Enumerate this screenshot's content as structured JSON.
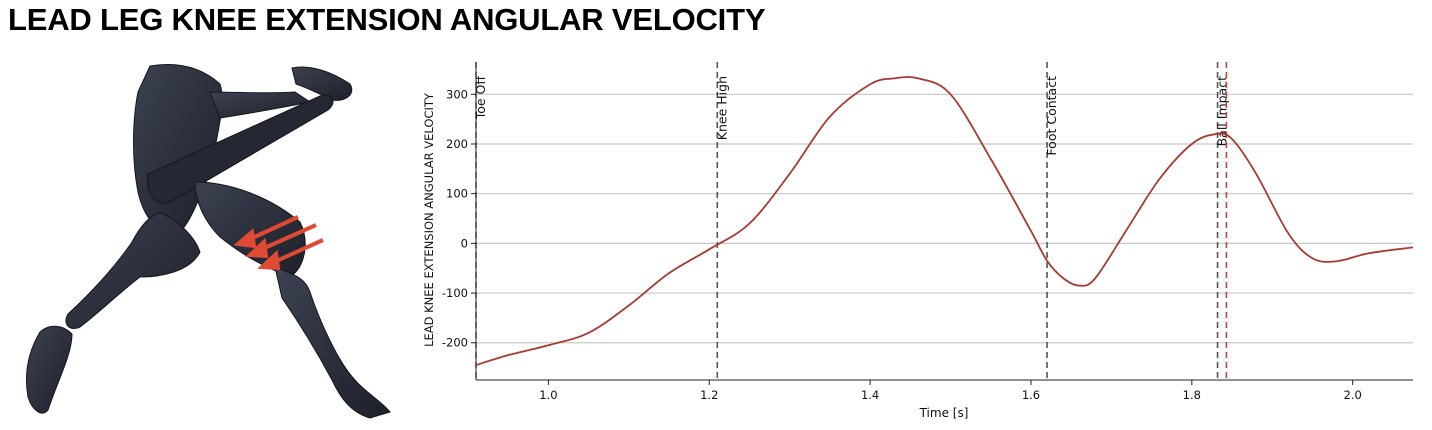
{
  "page": {
    "title": "LEAD LEG KNEE EXTENSION ANGULAR VELOCITY"
  },
  "figure": {
    "icon": "knee-extension-figure",
    "arrow_color": "#e04a32",
    "body_color": "#2b2f3b"
  },
  "chart_data": {
    "type": "line",
    "title": "",
    "xlabel": "Time [s]",
    "ylabel": "LEAD KNEE EXTENSION ANGULAR VELOCITY",
    "xlim": [
      0.91,
      2.075
    ],
    "ylim": [
      -275,
      365
    ],
    "xticks": [
      1.0,
      1.2,
      1.4,
      1.6,
      1.8,
      2.0
    ],
    "xtick_labels": [
      "1.0",
      "1.2",
      "1.4",
      "1.6",
      "1.8",
      "2.0"
    ],
    "yticks": [
      300,
      200,
      100,
      0,
      -100,
      -200
    ],
    "ytick_labels": [
      "300",
      "200",
      "100",
      "0",
      "-100",
      "-200"
    ],
    "grid": "horizontal",
    "series": [
      {
        "color": "#a93a32",
        "x": [
          0.91,
          0.95,
          1.0,
          1.05,
          1.1,
          1.15,
          1.2,
          1.25,
          1.3,
          1.35,
          1.4,
          1.43,
          1.46,
          1.5,
          1.55,
          1.6,
          1.62,
          1.64,
          1.66,
          1.68,
          1.72,
          1.76,
          1.8,
          1.83,
          1.85,
          1.88,
          1.92,
          1.95,
          1.98,
          2.02,
          2.075
        ],
        "y": [
          -245,
          -225,
          -205,
          -180,
          -125,
          -60,
          -12,
          40,
          140,
          255,
          320,
          332,
          332,
          300,
          170,
          25,
          -35,
          -70,
          -85,
          -70,
          30,
          130,
          200,
          220,
          210,
          140,
          20,
          -30,
          -36,
          -20,
          -8
        ]
      }
    ],
    "events": [
      {
        "label": "Toe Off",
        "x": 0.91,
        "color": "#666666"
      },
      {
        "label": "Knee High",
        "x": 1.21,
        "color": "#555555"
      },
      {
        "label": "Foot Contact",
        "x": 1.62,
        "color": "#555555"
      },
      {
        "label": "Ball Impact",
        "x": 1.832,
        "color": "#555555"
      },
      {
        "label": "",
        "x": 1.843,
        "color": "#c2463d"
      }
    ]
  }
}
